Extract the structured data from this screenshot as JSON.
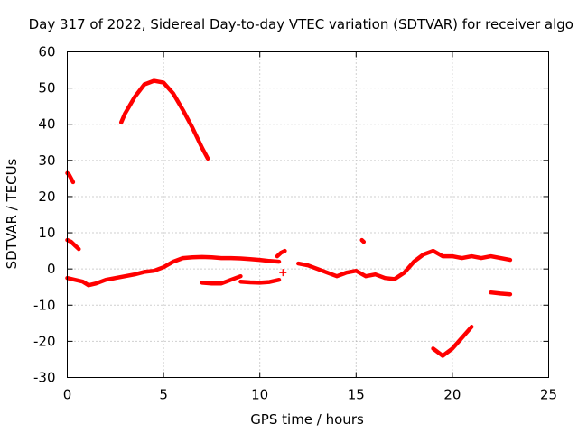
{
  "chart_data": {
    "type": "scatter",
    "title": "Day 317 of 2022, Sidereal Day-to-day VTEC variation (SDTVAR) for receiver algo",
    "xlabel": "GPS time / hours",
    "ylabel": "SDTVAR / TECUs",
    "xlim": [
      0,
      25
    ],
    "ylim": [
      -30,
      60
    ],
    "xticks": [
      0,
      5,
      10,
      15,
      20,
      25
    ],
    "yticks": [
      -30,
      -20,
      -10,
      0,
      10,
      20,
      30,
      40,
      50,
      60
    ],
    "xtick_labels": [
      "0",
      "5",
      "10",
      "15",
      "20",
      "25"
    ],
    "ytick_labels": [
      "-30",
      "-20",
      "-10",
      "0",
      "10",
      "20",
      "30",
      "40",
      "50",
      "60"
    ],
    "grid": true,
    "marker": "+",
    "colors": {
      "series": "#ff0000",
      "axes": "#000000",
      "grid": "#a0a0a0"
    },
    "series": [
      {
        "name": "segment-1",
        "x": [
          0.0,
          0.1,
          0.2,
          0.3
        ],
        "y": [
          26.5,
          26.0,
          25.0,
          24.0
        ]
      },
      {
        "name": "segment-2",
        "x": [
          0.0,
          0.2,
          0.4,
          0.6
        ],
        "y": [
          8.0,
          7.5,
          6.5,
          5.5
        ]
      },
      {
        "name": "segment-3",
        "x": [
          0.0,
          0.4,
          0.8,
          1.1,
          1.5,
          2.0,
          2.5,
          3.0,
          3.5,
          4.0,
          4.5,
          5.0,
          5.5,
          6.0,
          6.5,
          7.0,
          7.5,
          8.0,
          8.5,
          9.0,
          9.5,
          10.0,
          10.5,
          11.0
        ],
        "y": [
          -2.5,
          -3.0,
          -3.5,
          -4.5,
          -4.0,
          -3.0,
          -2.5,
          -2.0,
          -1.5,
          -0.8,
          -0.5,
          0.5,
          2.0,
          3.0,
          3.2,
          3.3,
          3.2,
          3.0,
          3.0,
          2.9,
          2.7,
          2.5,
          2.2,
          2.0
        ]
      },
      {
        "name": "segment-4",
        "x": [
          7.0,
          7.5,
          8.0,
          8.5,
          9.0
        ],
        "y": [
          -3.8,
          -4.0,
          -4.0,
          -3.0,
          -2.0
        ]
      },
      {
        "name": "segment-5",
        "x": [
          9.0,
          9.5,
          10.0,
          10.5,
          11.0
        ],
        "y": [
          -3.5,
          -3.7,
          -3.8,
          -3.6,
          -3.0
        ]
      },
      {
        "name": "segment-6",
        "x": [
          10.9,
          11.1,
          11.3
        ],
        "y": [
          3.5,
          4.5,
          5.0
        ]
      },
      {
        "name": "segment-7",
        "x": [
          2.8,
          3.0,
          3.5,
          4.0,
          4.5,
          5.0,
          5.5,
          6.0,
          6.5,
          7.0,
          7.3
        ],
        "y": [
          40.5,
          43.0,
          47.5,
          51.0,
          52.0,
          51.5,
          48.5,
          44.0,
          39.0,
          33.5,
          30.5
        ]
      },
      {
        "name": "segment-8",
        "x": [
          12.0,
          12.5,
          13.0,
          13.5,
          14.0,
          14.5,
          15.0,
          15.5,
          16.0,
          16.5,
          17.0,
          17.5,
          18.0,
          18.5,
          19.0,
          19.5,
          20.0,
          20.5,
          21.0,
          21.5,
          22.0,
          22.5,
          23.0
        ],
        "y": [
          1.5,
          1.0,
          0.0,
          -1.0,
          -2.0,
          -1.0,
          -0.5,
          -2.0,
          -1.5,
          -2.5,
          -2.8,
          -1.0,
          2.0,
          4.0,
          5.0,
          3.5,
          3.5,
          3.0,
          3.5,
          3.0,
          3.5,
          3.0,
          2.5
        ]
      },
      {
        "name": "segment-9",
        "x": [
          15.3,
          15.4
        ],
        "y": [
          8.0,
          7.5
        ]
      },
      {
        "name": "segment-10",
        "x": [
          19.0,
          19.5,
          20.0,
          20.5,
          21.0
        ],
        "y": [
          -22.0,
          -24.0,
          -22.0,
          -19.0,
          -16.0
        ]
      },
      {
        "name": "segment-11",
        "x": [
          22.0,
          22.5,
          23.0
        ],
        "y": [
          -6.5,
          -6.8,
          -7.0
        ]
      },
      {
        "name": "isolated-point",
        "x": [
          11.2
        ],
        "y": [
          -1.0
        ]
      }
    ]
  }
}
